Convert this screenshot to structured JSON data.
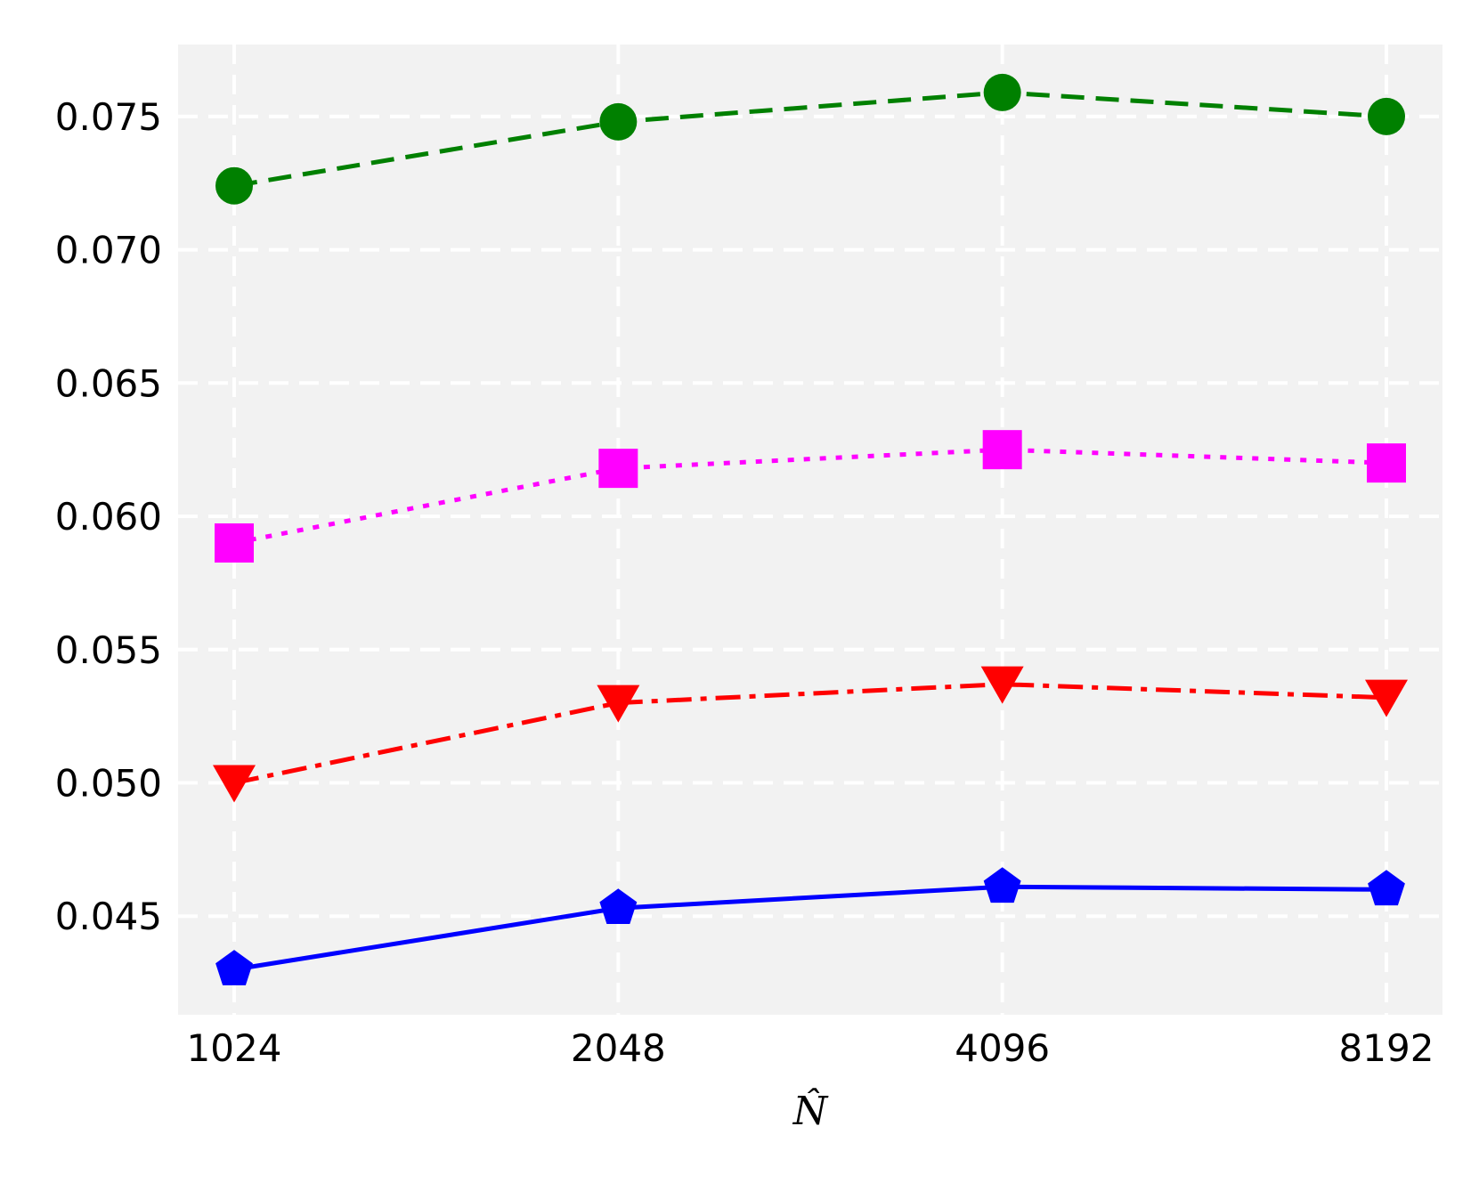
{
  "chart_data": {
    "type": "line",
    "categories": [
      "1024",
      "2048",
      "4096",
      "8192"
    ],
    "xlabel": "N̂",
    "ylabel": "",
    "ylim": [
      0.0413,
      0.0777
    ],
    "yticks": [
      "0.045",
      "0.050",
      "0.055",
      "0.060",
      "0.065",
      "0.070",
      "0.075"
    ],
    "grid": true,
    "background": "#f2f2f2",
    "series": [
      {
        "values": [
          0.0724,
          0.0748,
          0.0759,
          0.075
        ],
        "color": "#008000",
        "marker": "circle",
        "dash": "dashed"
      },
      {
        "values": [
          0.059,
          0.0618,
          0.0625,
          0.062
        ],
        "color": "#ff00ff",
        "marker": "square",
        "dash": "dotted"
      },
      {
        "values": [
          0.05,
          0.053,
          0.0537,
          0.0532
        ],
        "color": "#ff0000",
        "marker": "triangle-down",
        "dash": "dashdot"
      },
      {
        "values": [
          0.043,
          0.0453,
          0.0461,
          0.046
        ],
        "color": "#0000ff",
        "marker": "pentagon",
        "dash": "solid"
      }
    ]
  }
}
